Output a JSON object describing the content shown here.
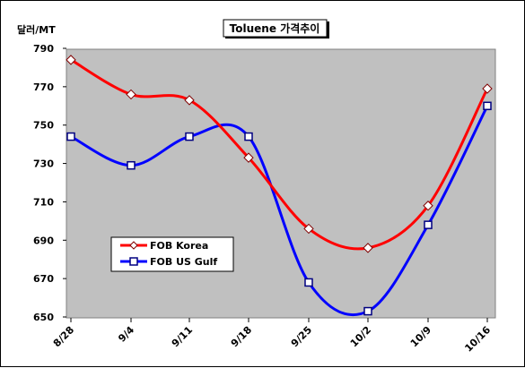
{
  "chart_data": {
    "type": "line",
    "title": "Toluene 가격추이",
    "ylabel": "달러/MT",
    "xlabel": "",
    "categories": [
      "8/28",
      "9/4",
      "9/11",
      "9/18",
      "9/25",
      "10/2",
      "10/9",
      "10/16"
    ],
    "ylim": [
      650,
      790
    ],
    "yticks": [
      650,
      670,
      690,
      710,
      730,
      750,
      770,
      790
    ],
    "grid": false,
    "legend_position": "lower-left",
    "series": [
      {
        "name": "FOB Korea",
        "color": "#ff0000",
        "marker": "diamond",
        "values": [
          784,
          766,
          763,
          733,
          696,
          686,
          708,
          769
        ]
      },
      {
        "name": "FOB US Gulf",
        "color": "#0000ff",
        "marker": "square",
        "values": [
          744,
          729,
          744,
          744,
          668,
          653,
          698,
          760
        ]
      }
    ],
    "plot_background": "#c0c0c0"
  }
}
